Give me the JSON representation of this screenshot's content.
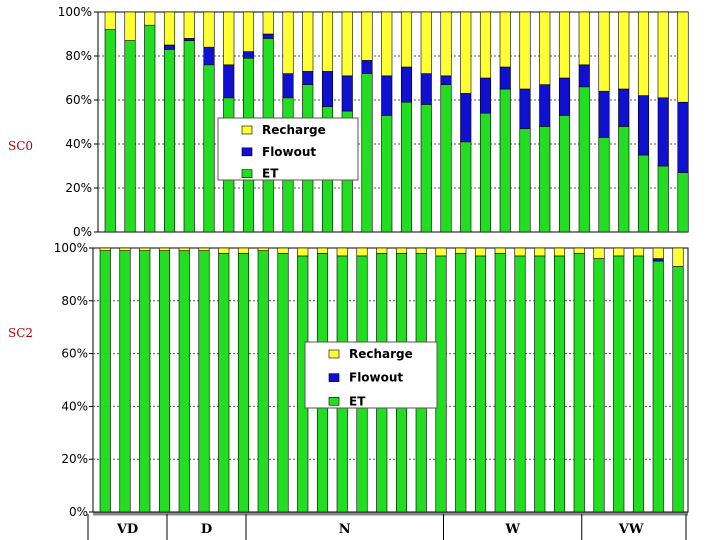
{
  "chart_data": [
    {
      "type": "bar",
      "stacked": true,
      "title": "SC0",
      "ytick_labels": [
        "0%",
        "20%",
        "40%",
        "60%",
        "80%",
        "100%"
      ],
      "ylim": [
        0,
        100
      ],
      "legend": {
        "position": "center-left",
        "entries": [
          "Recharge",
          "Flowout",
          "ET"
        ]
      },
      "series": [
        {
          "name": "ET",
          "color": "#22dd22",
          "values": [
            92,
            87,
            94,
            83,
            87,
            76,
            61,
            79,
            88,
            61,
            67,
            57,
            55,
            72,
            53,
            59,
            58,
            67,
            41,
            54,
            65,
            47,
            48,
            53,
            66,
            43,
            48,
            35,
            30,
            27
          ]
        },
        {
          "name": "Flowout",
          "color": "#1010d0",
          "values": [
            0,
            0,
            0,
            2,
            1,
            8,
            15,
            3,
            2,
            11,
            6,
            16,
            16,
            6,
            18,
            16,
            14,
            4,
            22,
            16,
            10,
            18,
            19,
            17,
            10,
            21,
            17,
            27,
            31,
            32
          ]
        },
        {
          "name": "Recharge",
          "color": "#ffff33",
          "values": [
            8,
            13,
            6,
            15,
            12,
            16,
            24,
            18,
            10,
            28,
            27,
            27,
            29,
            22,
            29,
            25,
            28,
            29,
            37,
            30,
            25,
            35,
            33,
            30,
            24,
            36,
            35,
            38,
            39,
            41
          ]
        }
      ]
    },
    {
      "type": "bar",
      "stacked": true,
      "title": "SC2",
      "ytick_labels": [
        "0%",
        "20%",
        "40%",
        "60%",
        "80%",
        "100%"
      ],
      "ylim": [
        0,
        100
      ],
      "legend": {
        "position": "center",
        "entries": [
          "Recharge",
          "Flowout",
          "ET"
        ]
      },
      "series": [
        {
          "name": "ET",
          "color": "#22dd22",
          "values": [
            99,
            99,
            99,
            99,
            99,
            99,
            98,
            98,
            99,
            98,
            97,
            98,
            97,
            97,
            98,
            98,
            98,
            97,
            98,
            97,
            98,
            97,
            97,
            97,
            98,
            96,
            97,
            97,
            95,
            93
          ]
        },
        {
          "name": "Flowout",
          "color": "#1010d0",
          "values": [
            0,
            0,
            0,
            0,
            0,
            0,
            0,
            0,
            0,
            0,
            0,
            0,
            0,
            0,
            0,
            0,
            0,
            0,
            0,
            0,
            0,
            0,
            0,
            0,
            0,
            0,
            0,
            0,
            1,
            0
          ]
        },
        {
          "name": "Recharge",
          "color": "#ffff33",
          "values": [
            1,
            1,
            1,
            1,
            1,
            1,
            2,
            2,
            1,
            2,
            3,
            2,
            3,
            3,
            2,
            2,
            2,
            3,
            2,
            3,
            2,
            3,
            3,
            3,
            2,
            4,
            3,
            3,
            4,
            7
          ]
        }
      ],
      "periods": [
        {
          "label": "VD",
          "start": 0,
          "end": 4
        },
        {
          "label": "D",
          "start": 4,
          "end": 8
        },
        {
          "label": "N",
          "start": 8,
          "end": 18
        },
        {
          "label": "W",
          "start": 18,
          "end": 25
        },
        {
          "label": "VW",
          "start": 25,
          "end": 30
        }
      ]
    }
  ]
}
